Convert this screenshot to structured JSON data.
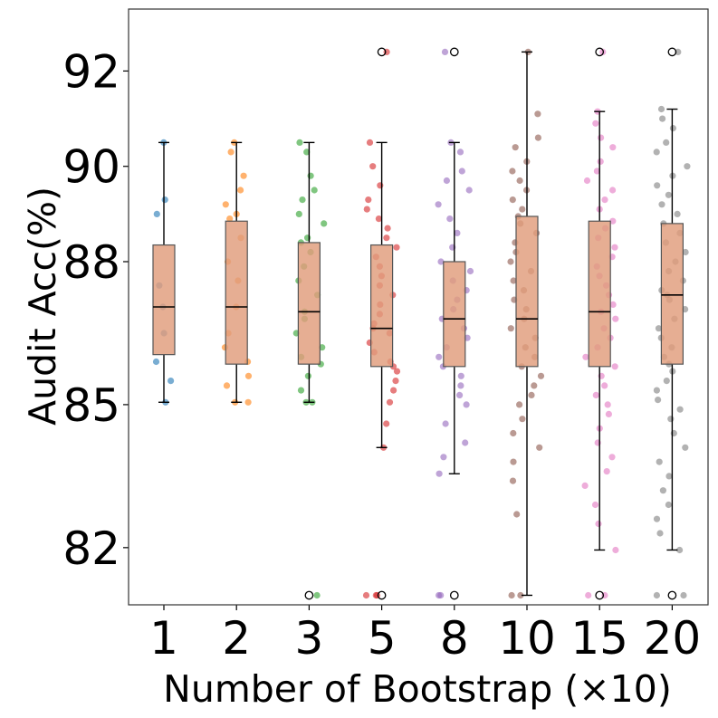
{
  "chart_data": {
    "type": "box",
    "xlabel": "Number of Bootstrap (×10)",
    "ylabel": "Audit Acc(%)",
    "ylim": [
      80.8,
      93.3
    ],
    "yticks": [
      82,
      85,
      88,
      90,
      92
    ],
    "ytick_labels": [
      "82",
      "85",
      "88",
      "90",
      "92"
    ],
    "grid": false,
    "categories": [
      "1",
      "2",
      "3",
      "5",
      "8",
      "10",
      "15",
      "20"
    ],
    "box_color": "#E19C7B",
    "series": [
      {
        "name": "1",
        "color": "#1f77b4",
        "whisker_low": 85.05,
        "q1": 86.05,
        "median": 87.05,
        "q3": 88.35,
        "whisker_high": 90.5,
        "outliers": [],
        "points": [
          90.5,
          89.3,
          89.0,
          87.5,
          87.05,
          86.5,
          85.9,
          85.5,
          85.05
        ]
      },
      {
        "name": "2",
        "color": "#ff7f0e",
        "whisker_low": 85.05,
        "q1": 85.85,
        "median": 87.05,
        "q3": 88.85,
        "whisker_high": 90.5,
        "outliers": [],
        "points": [
          90.5,
          90.3,
          89.8,
          89.5,
          89.2,
          89.0,
          88.9,
          88.5,
          88.0,
          87.6,
          87.05,
          86.5,
          86.2,
          85.9,
          85.6,
          85.4,
          85.05,
          85.05
        ]
      },
      {
        "name": "3",
        "color": "#2ca02c",
        "whisker_low": 85.05,
        "q1": 85.85,
        "median": 86.95,
        "q3": 88.4,
        "whisker_high": 90.5,
        "outliers": [
          81.0
        ],
        "points": [
          90.5,
          90.3,
          89.8,
          89.5,
          89.3,
          89.0,
          88.8,
          88.5,
          88.4,
          88.2,
          87.9,
          87.6,
          87.3,
          86.95,
          86.8,
          86.5,
          86.2,
          86.0,
          85.85,
          85.6,
          85.3,
          85.05,
          85.05,
          81.0
        ]
      },
      {
        "name": "5",
        "color": "#d62728",
        "whisker_low": 84.1,
        "q1": 85.8,
        "median": 86.6,
        "q3": 88.35,
        "whisker_high": 90.5,
        "outliers": [
          92.4,
          81.0
        ],
        "points": [
          92.4,
          90.5,
          90.0,
          89.6,
          89.3,
          89.1,
          88.9,
          88.7,
          88.5,
          88.3,
          88.1,
          87.9,
          87.7,
          87.5,
          87.3,
          87.1,
          86.9,
          86.7,
          86.6,
          86.5,
          86.3,
          86.1,
          85.9,
          85.8,
          85.7,
          85.5,
          85.3,
          85.05,
          84.6,
          84.1,
          81.0,
          81.0,
          81.0
        ]
      },
      {
        "name": "8",
        "color": "#9467bd",
        "whisker_low": 83.55,
        "q1": 85.8,
        "median": 86.8,
        "q3": 88.0,
        "whisker_high": 90.5,
        "outliers": [
          92.4,
          81.0
        ],
        "points": [
          92.4,
          90.5,
          90.3,
          89.9,
          89.7,
          89.5,
          89.2,
          88.9,
          88.6,
          88.3,
          88.0,
          87.8,
          87.6,
          87.4,
          87.2,
          87.0,
          86.8,
          86.6,
          86.4,
          86.2,
          86.0,
          85.8,
          85.6,
          85.4,
          85.2,
          85.0,
          84.6,
          84.2,
          83.9,
          83.55,
          81.0,
          81.0
        ]
      },
      {
        "name": "10",
        "color": "#8c564b",
        "whisker_low": 81.0,
        "q1": 85.8,
        "median": 86.8,
        "q3": 88.95,
        "whisker_high": 92.4,
        "outliers": [],
        "points": [
          92.4,
          91.1,
          90.6,
          90.4,
          90.1,
          89.9,
          89.7,
          89.5,
          89.3,
          89.1,
          88.95,
          88.8,
          88.6,
          88.4,
          88.2,
          88.0,
          87.8,
          87.6,
          87.4,
          87.2,
          87.0,
          86.8,
          86.6,
          86.4,
          86.2,
          86.0,
          85.8,
          85.6,
          85.4,
          85.2,
          85.0,
          84.7,
          84.4,
          84.1,
          83.8,
          83.4,
          82.7,
          81.0,
          81.0
        ]
      },
      {
        "name": "15",
        "color": "#e377c2",
        "whisker_low": 81.95,
        "q1": 85.8,
        "median": 86.95,
        "q3": 88.85,
        "whisker_high": 91.15,
        "outliers": [
          92.4,
          81.0
        ],
        "points": [
          92.4,
          91.15,
          90.9,
          90.6,
          90.4,
          90.1,
          89.9,
          89.7,
          89.5,
          89.3,
          89.1,
          88.85,
          88.7,
          88.5,
          88.3,
          88.1,
          87.9,
          87.7,
          87.5,
          87.3,
          87.1,
          86.95,
          86.8,
          86.6,
          86.4,
          86.2,
          86.0,
          85.8,
          85.6,
          85.4,
          85.2,
          85.0,
          84.8,
          84.5,
          84.2,
          83.9,
          83.6,
          83.3,
          82.9,
          82.5,
          81.95,
          81.0,
          81.0
        ]
      },
      {
        "name": "20",
        "color": "#7f7f7f",
        "whisker_low": 81.95,
        "q1": 85.85,
        "median": 87.3,
        "q3": 88.8,
        "whisker_high": 91.2,
        "outliers": [
          92.4,
          81.0
        ],
        "points": [
          92.4,
          91.2,
          91.0,
          90.8,
          90.5,
          90.3,
          90.0,
          89.8,
          89.6,
          89.4,
          89.2,
          89.0,
          88.8,
          88.6,
          88.4,
          88.2,
          88.0,
          87.8,
          87.6,
          87.4,
          87.3,
          87.2,
          87.0,
          86.8,
          86.6,
          86.4,
          86.2,
          86.0,
          85.85,
          85.7,
          85.5,
          85.3,
          85.1,
          84.9,
          84.7,
          84.4,
          84.1,
          83.8,
          83.5,
          83.2,
          82.9,
          82.6,
          82.3,
          81.95,
          81.0,
          81.0
        ]
      }
    ]
  }
}
